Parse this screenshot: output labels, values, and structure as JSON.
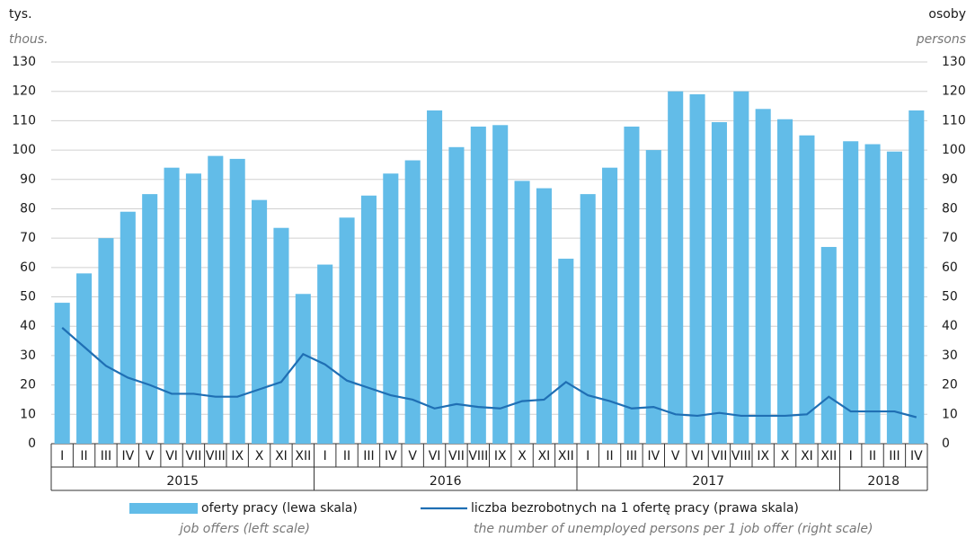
{
  "chart_data": {
    "type": "bar",
    "y_title": "tys.",
    "y_title_en": "thous.",
    "y2_title": "osoby",
    "y2_title_en": "persons",
    "groups": [
      {
        "label": "2015",
        "categories": [
          "I",
          "II",
          "III",
          "IV",
          "V",
          "VI",
          "VII",
          "VIII",
          "IX",
          "X",
          "XI",
          "XII"
        ]
      },
      {
        "label": "2016",
        "categories": [
          "I",
          "II",
          "III",
          "IV",
          "V",
          "VI",
          "VII",
          "VIII",
          "IX",
          "X",
          "XI",
          "XII"
        ]
      },
      {
        "label": "2017",
        "categories": [
          "I",
          "II",
          "III",
          "IV",
          "V",
          "VI",
          "VII",
          "VIII",
          "IX",
          "X",
          "XI",
          "XII"
        ]
      },
      {
        "label": "2018",
        "categories": [
          "I",
          "II",
          "III",
          "IV"
        ]
      }
    ],
    "series": [
      {
        "name": "oferty pracy (lewa skala)",
        "name_en": "job offers (left scale)",
        "type": "bar",
        "color": "#62bce8",
        "values": [
          48,
          58,
          70,
          79,
          85,
          94,
          92,
          98,
          97,
          83,
          73.5,
          51,
          61,
          77,
          84.5,
          92,
          96.5,
          113.5,
          101,
          108,
          108.5,
          89.5,
          87,
          63,
          85,
          94,
          108,
          100,
          120,
          119,
          109.5,
          120,
          114,
          110.5,
          105,
          67,
          103,
          102,
          99.5,
          113.5
        ]
      },
      {
        "name": "liczba bezrobotnych na 1 ofertę pracy (prawa skala)",
        "name_en": "the number of unemployed persons per 1 job offer (right scale)",
        "type": "line",
        "axis": "y2",
        "color": "#1f6fb4",
        "values": [
          39.5,
          33,
          26.5,
          22.5,
          20,
          17,
          17,
          16,
          16,
          18.5,
          21,
          30.5,
          27,
          21.5,
          19,
          16.5,
          15,
          12,
          13.5,
          12.5,
          12,
          14.5,
          15,
          21,
          16.5,
          14.5,
          12,
          12.5,
          10,
          9.5,
          10.5,
          9.5,
          9.5,
          9.5,
          10,
          16,
          11,
          11,
          11,
          9
        ]
      }
    ],
    "ylim": [
      0,
      130
    ],
    "yticks": [
      0,
      10,
      20,
      30,
      40,
      50,
      60,
      70,
      80,
      90,
      100,
      110,
      120,
      130
    ],
    "y2lim": [
      0,
      130
    ],
    "y2ticks": [
      0,
      10,
      20,
      30,
      40,
      50,
      60,
      70,
      80,
      90,
      100,
      110,
      120,
      130
    ],
    "grid": true
  }
}
